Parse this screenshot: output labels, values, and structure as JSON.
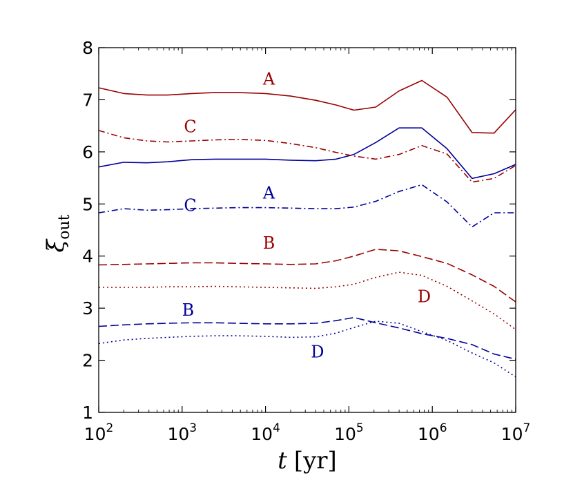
{
  "chart_data": {
    "type": "line",
    "title": "",
    "xlabel": {
      "var": "t",
      "unit": "[yr]"
    },
    "ylabel": {
      "var": "ξ",
      "sub": "out"
    },
    "xscale": "log",
    "xlim": [
      100,
      10000000
    ],
    "ylim": [
      1,
      8
    ],
    "xticks": [
      {
        "value": 100,
        "base": "10",
        "exp": "2"
      },
      {
        "value": 1000,
        "base": "10",
        "exp": "3"
      },
      {
        "value": 10000,
        "base": "10",
        "exp": "4"
      },
      {
        "value": 100000,
        "base": "10",
        "exp": "5"
      },
      {
        "value": 1000000,
        "base": "10",
        "exp": "6"
      },
      {
        "value": 10000000,
        "base": "10",
        "exp": "7"
      }
    ],
    "yticks": [
      {
        "value": 1,
        "label": "1"
      },
      {
        "value": 2,
        "label": "2"
      },
      {
        "value": 3,
        "label": "3"
      },
      {
        "value": 4,
        "label": "4"
      },
      {
        "value": 5,
        "label": "5"
      },
      {
        "value": 6,
        "label": "6"
      },
      {
        "value": 7,
        "label": "7"
      },
      {
        "value": 8,
        "label": "8"
      }
    ],
    "colors": {
      "red": "#990000",
      "blue": "#000099"
    },
    "series": [
      {
        "name": "A-red",
        "color": "red",
        "style": "solid",
        "x": [
          100,
          200,
          380,
          670,
          1300,
          2500,
          4600,
          10000,
          20000,
          40000,
          70000,
          115000,
          210000,
          400000,
          750000,
          1500000,
          3000000,
          5500000,
          10000000
        ],
        "y": [
          7.23,
          7.12,
          7.09,
          7.09,
          7.12,
          7.14,
          7.14,
          7.12,
          7.07,
          6.99,
          6.9,
          6.8,
          6.86,
          7.17,
          7.37,
          7.05,
          6.37,
          6.36,
          6.81
        ]
      },
      {
        "name": "A-blue",
        "color": "blue",
        "style": "solid",
        "x": [
          100,
          200,
          380,
          670,
          1300,
          2500,
          4600,
          10000,
          20000,
          40000,
          70000,
          115000,
          210000,
          400000,
          750000,
          1500000,
          3000000,
          5500000,
          10000000
        ],
        "y": [
          5.71,
          5.8,
          5.79,
          5.81,
          5.85,
          5.86,
          5.86,
          5.86,
          5.84,
          5.83,
          5.86,
          5.95,
          6.18,
          6.46,
          6.46,
          6.06,
          5.49,
          5.58,
          5.76
        ]
      },
      {
        "name": "C-red",
        "color": "red",
        "style": "dashdot",
        "x": [
          100,
          200,
          380,
          670,
          1300,
          2500,
          4600,
          10000,
          20000,
          40000,
          70000,
          115000,
          210000,
          400000,
          750000,
          1500000,
          3000000,
          5500000,
          10000000
        ],
        "y": [
          6.41,
          6.27,
          6.21,
          6.19,
          6.21,
          6.23,
          6.24,
          6.22,
          6.16,
          6.08,
          5.99,
          5.92,
          5.86,
          5.95,
          6.12,
          5.96,
          5.42,
          5.49,
          5.74
        ]
      },
      {
        "name": "C-blue",
        "color": "blue",
        "style": "dashdot",
        "x": [
          100,
          200,
          380,
          670,
          1300,
          2500,
          4600,
          10000,
          20000,
          40000,
          70000,
          115000,
          210000,
          400000,
          750000,
          1500000,
          3000000,
          5500000,
          10000000
        ],
        "y": [
          4.83,
          4.91,
          4.88,
          4.89,
          4.91,
          4.92,
          4.93,
          4.93,
          4.92,
          4.91,
          4.91,
          4.94,
          5.05,
          5.24,
          5.37,
          5.04,
          4.56,
          4.83,
          4.83
        ]
      },
      {
        "name": "B-red",
        "color": "red",
        "style": "dashed",
        "x": [
          100,
          200,
          380,
          670,
          1300,
          2500,
          4600,
          10000,
          20000,
          40000,
          70000,
          115000,
          210000,
          400000,
          750000,
          1500000,
          3000000,
          5500000,
          10000000
        ],
        "y": [
          3.83,
          3.84,
          3.85,
          3.86,
          3.87,
          3.87,
          3.86,
          3.85,
          3.84,
          3.85,
          3.91,
          4.0,
          4.13,
          4.1,
          3.99,
          3.86,
          3.64,
          3.42,
          3.12
        ]
      },
      {
        "name": "B-blue",
        "color": "blue",
        "style": "dashed",
        "x": [
          100,
          200,
          380,
          670,
          1300,
          2500,
          4600,
          10000,
          20000,
          40000,
          70000,
          115000,
          210000,
          400000,
          750000,
          1500000,
          3000000,
          5500000,
          10000000
        ],
        "y": [
          2.65,
          2.68,
          2.7,
          2.71,
          2.72,
          2.72,
          2.71,
          2.7,
          2.7,
          2.71,
          2.76,
          2.82,
          2.72,
          2.62,
          2.51,
          2.42,
          2.3,
          2.12,
          2.02
        ]
      },
      {
        "name": "D-red",
        "color": "red",
        "style": "dotted",
        "x": [
          100,
          200,
          380,
          670,
          1300,
          2500,
          4600,
          10000,
          20000,
          40000,
          70000,
          115000,
          210000,
          400000,
          750000,
          1500000,
          3000000,
          5500000,
          10000000
        ],
        "y": [
          3.4,
          3.4,
          3.4,
          3.41,
          3.41,
          3.42,
          3.41,
          3.4,
          3.39,
          3.38,
          3.41,
          3.46,
          3.59,
          3.69,
          3.63,
          3.42,
          3.14,
          2.89,
          2.59
        ]
      },
      {
        "name": "D-blue",
        "color": "blue",
        "style": "dotted",
        "x": [
          100,
          200,
          380,
          670,
          1300,
          2500,
          4600,
          10000,
          20000,
          40000,
          70000,
          115000,
          210000,
          400000,
          750000,
          1500000,
          3000000,
          5500000,
          10000000
        ],
        "y": [
          2.32,
          2.39,
          2.42,
          2.44,
          2.46,
          2.47,
          2.47,
          2.46,
          2.44,
          2.45,
          2.52,
          2.63,
          2.75,
          2.71,
          2.55,
          2.38,
          2.14,
          1.95,
          1.68
        ]
      }
    ],
    "annotations": [
      {
        "text": "A",
        "color": "red",
        "x": 11000,
        "y": 7.38
      },
      {
        "text": "C",
        "color": "red",
        "x": 1250,
        "y": 6.46
      },
      {
        "text": "A",
        "color": "blue",
        "x": 11000,
        "y": 5.19
      },
      {
        "text": "C",
        "color": "blue",
        "x": 1250,
        "y": 4.95
      },
      {
        "text": "B",
        "color": "red",
        "x": 11000,
        "y": 4.23
      },
      {
        "text": "D",
        "color": "red",
        "x": 800000,
        "y": 3.2
      },
      {
        "text": "B",
        "color": "blue",
        "x": 1180,
        "y": 2.94
      },
      {
        "text": "D",
        "color": "blue",
        "x": 42000,
        "y": 2.14
      }
    ]
  }
}
